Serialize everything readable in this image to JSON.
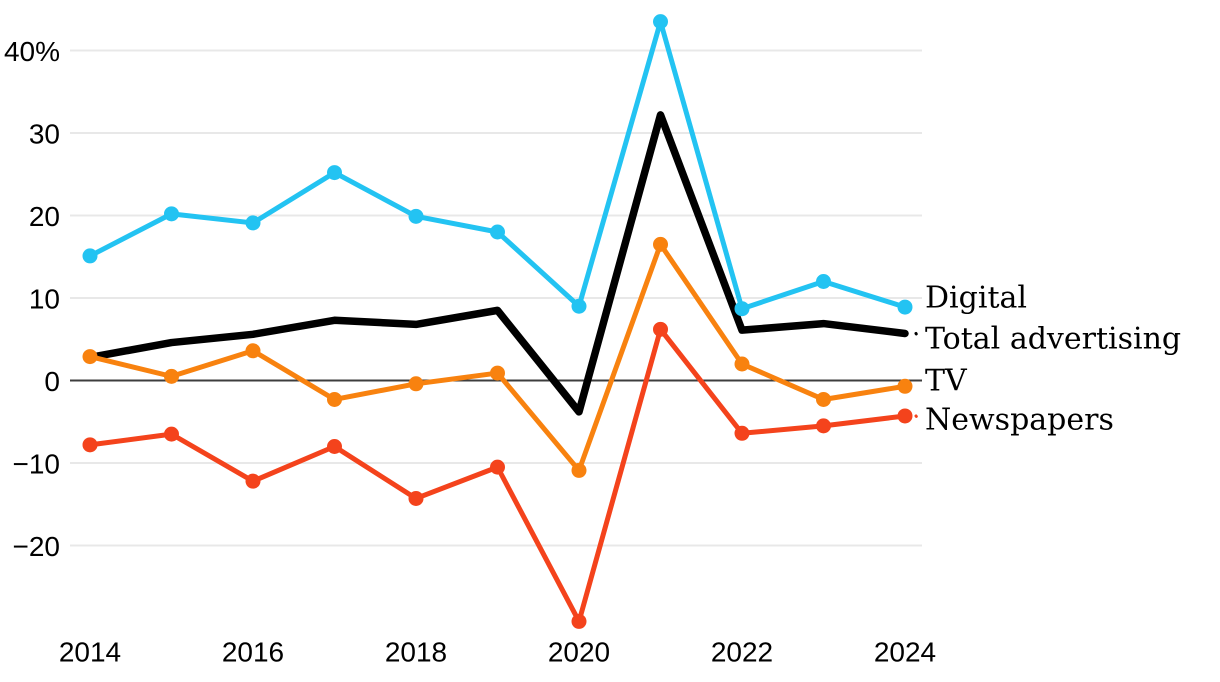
{
  "page": {
    "background": "#ffffff",
    "description": "Year-over-year advertising growth rate line chart"
  },
  "chart_data": {
    "type": "line",
    "title": "",
    "xlabel": "",
    "ylabel": "",
    "grid": true,
    "zero_line": true,
    "legend_position": "right-of-line-ends",
    "x": [
      2014,
      2015,
      2016,
      2017,
      2018,
      2019,
      2020,
      2021,
      2022,
      2023,
      2024
    ],
    "x_tick_years": [
      2014,
      2016,
      2018,
      2020,
      2022,
      2024
    ],
    "x_tick_labels": [
      "2014",
      "2016",
      "2018",
      "2020",
      "2022",
      "2024"
    ],
    "ylim": [
      -31,
      45
    ],
    "y_ticks": [
      {
        "value": 40,
        "label": "40%"
      },
      {
        "value": 30,
        "label": "30"
      },
      {
        "value": 20,
        "label": "20"
      },
      {
        "value": 10,
        "label": "10"
      },
      {
        "value": 0,
        "label": "0"
      },
      {
        "value": -10,
        "label": "−10"
      },
      {
        "value": -20,
        "label": "−20"
      }
    ],
    "series": [
      {
        "name": "Digital",
        "color": "#23c3f2",
        "markers": true,
        "values": [
          15.1,
          20.2,
          19.1,
          25.2,
          19.9,
          18.0,
          9.0,
          43.5,
          8.7,
          12.0,
          8.9
        ]
      },
      {
        "name": "Total advertising",
        "color": "#000000",
        "markers": false,
        "values": [
          2.8,
          4.6,
          5.6,
          7.3,
          6.8,
          8.5,
          -3.8,
          32.2,
          6.1,
          6.9,
          5.7
        ]
      },
      {
        "name": "TV",
        "color": "#f8820f",
        "markers": true,
        "values": [
          2.9,
          0.5,
          3.6,
          -2.3,
          -0.4,
          0.9,
          -10.9,
          16.5,
          2.0,
          -2.3,
          -0.7
        ]
      },
      {
        "name": "Newspapers",
        "color": "#f4431c",
        "markers": true,
        "values": [
          -7.8,
          -6.5,
          -12.2,
          -8.0,
          -14.3,
          -10.5,
          -29.2,
          6.2,
          -6.4,
          -5.5,
          -4.3
        ]
      }
    ],
    "colors": {
      "grid": "#e8e8e8",
      "zero_line": "#3d3d3d",
      "text": "#000000"
    }
  }
}
